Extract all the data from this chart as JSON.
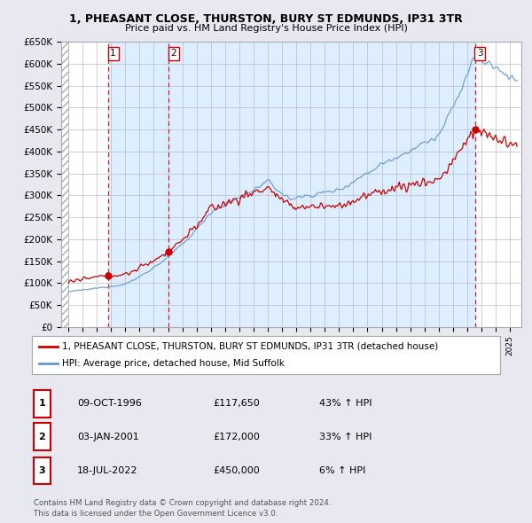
{
  "title": "1, PHEASANT CLOSE, THURSTON, BURY ST EDMUNDS, IP31 3TR",
  "subtitle": "Price paid vs. HM Land Registry's House Price Index (HPI)",
  "sales": [
    {
      "date": "1996-10-09",
      "price": 117650,
      "label": "1",
      "hpi_pct": "43% ↑ HPI",
      "date_str": "09-OCT-1996",
      "price_str": "£117,650"
    },
    {
      "date": "2001-01-03",
      "price": 172000,
      "label": "2",
      "hpi_pct": "33% ↑ HPI",
      "date_str": "03-JAN-2001",
      "price_str": "£172,000"
    },
    {
      "date": "2022-07-18",
      "price": 450000,
      "label": "3",
      "hpi_pct": "6% ↑ HPI",
      "date_str": "18-JUL-2022",
      "price_str": "£450,000"
    }
  ],
  "ylim": [
    0,
    650000
  ],
  "yticks": [
    0,
    50000,
    100000,
    150000,
    200000,
    250000,
    300000,
    350000,
    400000,
    450000,
    500000,
    550000,
    600000,
    650000
  ],
  "ytick_labels": [
    "£0",
    "£50K",
    "£100K",
    "£150K",
    "£200K",
    "£250K",
    "£300K",
    "£350K",
    "£400K",
    "£450K",
    "£500K",
    "£550K",
    "£600K",
    "£650K"
  ],
  "red_color": "#cc0000",
  "blue_color": "#6699cc",
  "blue_fill_color": "#ddeeff",
  "hatch_color": "#cccccc",
  "bg_color": "#e8e8f0",
  "plot_bg_color": "#ffffff",
  "grid_color": "#bbbbcc",
  "legend_line1": "1, PHEASANT CLOSE, THURSTON, BURY ST EDMUNDS, IP31 3TR (detached house)",
  "legend_line2": "HPI: Average price, detached house, Mid Suffolk",
  "footnote1": "Contains HM Land Registry data © Crown copyright and database right 2024.",
  "footnote2": "This data is licensed under the Open Government Licence v3.0.",
  "sale_times": [
    1996.77,
    2001.01,
    2022.54
  ],
  "sale_prices": [
    117650,
    172000,
    450000
  ]
}
